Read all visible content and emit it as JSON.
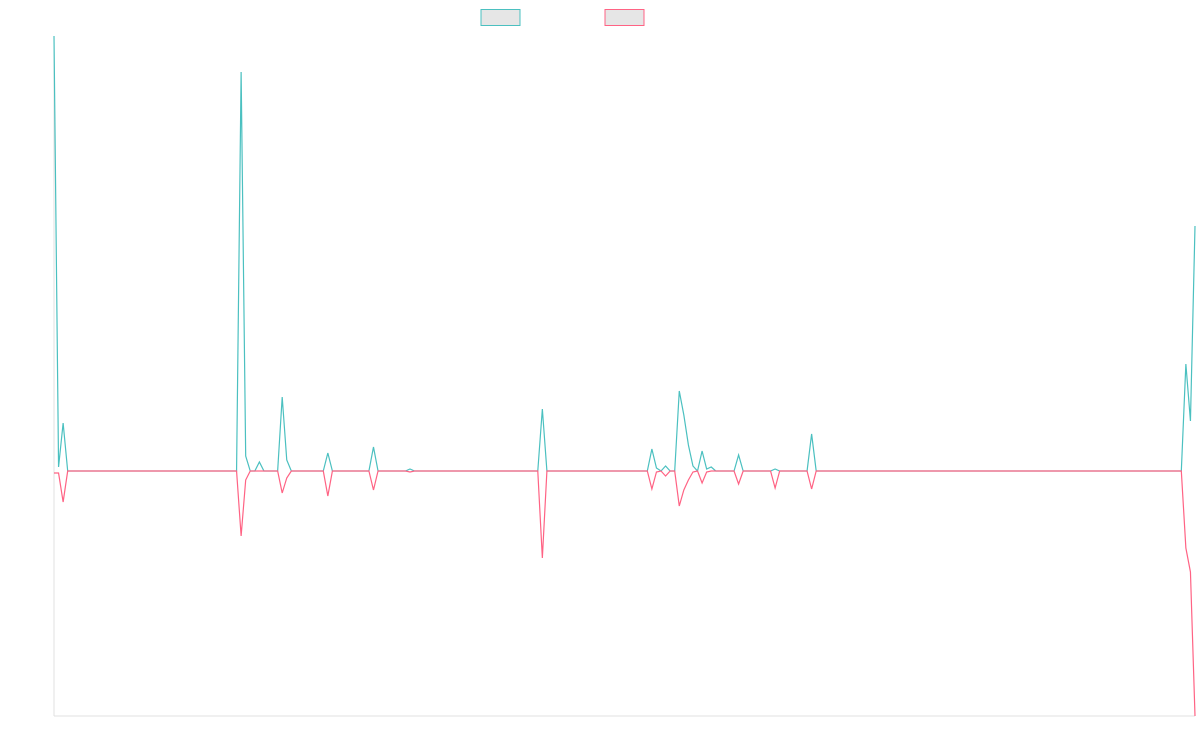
{
  "chart_data": {
    "type": "line",
    "x": [
      0,
      1,
      2,
      3,
      40,
      41,
      42,
      43,
      44,
      45,
      46,
      49,
      50,
      51,
      52,
      59,
      60,
      61,
      69,
      70,
      71,
      77,
      78,
      79,
      106,
      107,
      108,
      130,
      131,
      132,
      133,
      134,
      135,
      136,
      137,
      138,
      139,
      140,
      141,
      142,
      143,
      144,
      145,
      149,
      150,
      151,
      157,
      158,
      159,
      165,
      166,
      167,
      247,
      248,
      249,
      250
    ],
    "series": [
      {
        "color": "#4bc0c0",
        "values": [
          435,
          4,
          48,
          0,
          0,
          399,
          15,
          0,
          0,
          9,
          0,
          0,
          74,
          11,
          0,
          0,
          18,
          0,
          0,
          24,
          0,
          0,
          2,
          0,
          0,
          62,
          0,
          0,
          22,
          3,
          0,
          5,
          0,
          0,
          80,
          56,
          26,
          5,
          0,
          20,
          2,
          4,
          0,
          0,
          16,
          0,
          0,
          2,
          0,
          0,
          37,
          0,
          0,
          107,
          50,
          245
        ]
      },
      {
        "color": "#ff6384",
        "values": [
          -2,
          -2,
          -31,
          0,
          0,
          -65,
          -9,
          0,
          0,
          0,
          0,
          0,
          -22,
          -7,
          0,
          0,
          -25,
          0,
          0,
          -19,
          0,
          0,
          -1,
          0,
          0,
          -87,
          0,
          0,
          -18,
          -1,
          0,
          -5,
          0,
          0,
          -35,
          -19,
          -9,
          -1,
          0,
          -12,
          -1,
          0,
          0,
          0,
          -13,
          0,
          0,
          -17,
          0,
          0,
          -18,
          0,
          0,
          -77,
          -101,
          -245
        ]
      }
    ],
    "xlim": [
      0,
      250
    ],
    "ylim": [
      -245,
      435
    ]
  }
}
